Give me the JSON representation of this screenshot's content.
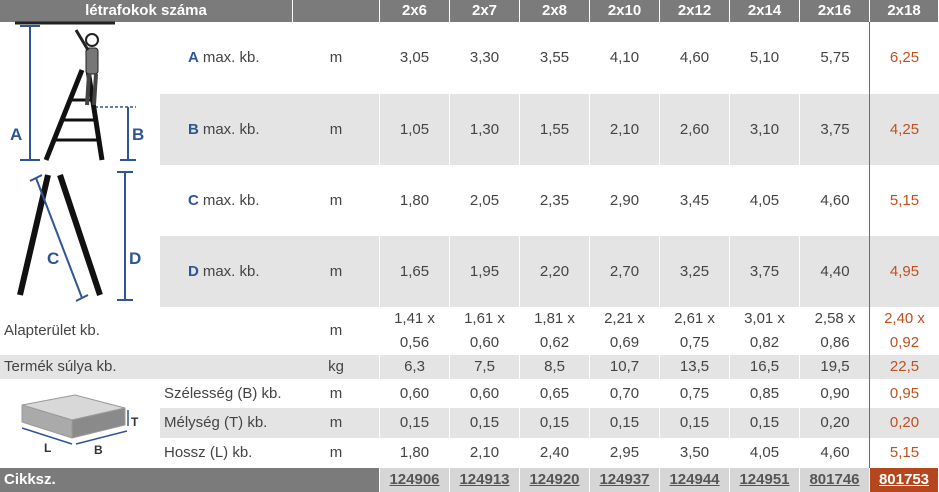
{
  "header": {
    "title": "létrafokok száma",
    "columns": [
      "2x6",
      "2x7",
      "2x8",
      "2x10",
      "2x12",
      "2x14",
      "2x16",
      "2x18"
    ]
  },
  "ladder_labels": {
    "a": "A",
    "b": "B",
    "c": "C",
    "d": "D"
  },
  "box_labels": {
    "t": "T",
    "l": "L",
    "b": "B"
  },
  "rows": [
    {
      "letter": "A",
      "label": "max. kb.",
      "unit": "m",
      "values": [
        "3,05",
        "3,30",
        "3,55",
        "4,10",
        "4,60",
        "5,10",
        "5,75",
        "6,25"
      ]
    },
    {
      "letter": "B",
      "label": "max. kb.",
      "unit": "m",
      "values": [
        "1,05",
        "1,30",
        "1,55",
        "2,10",
        "2,60",
        "3,10",
        "3,75",
        "4,25"
      ]
    },
    {
      "letter": "C",
      "label": "max. kb.",
      "unit": "m",
      "values": [
        "1,80",
        "2,05",
        "2,35",
        "2,90",
        "3,45",
        "4,05",
        "4,60",
        "5,15"
      ]
    },
    {
      "letter": "D",
      "label": "max. kb.",
      "unit": "m",
      "values": [
        "1,65",
        "1,95",
        "2,20",
        "2,70",
        "3,25",
        "3,75",
        "4,40",
        "4,95"
      ]
    },
    {
      "label": "Alapterület kb.",
      "unit": "m",
      "values": [
        [
          "1,41 x",
          "0,56"
        ],
        [
          "1,61 x",
          "0,60"
        ],
        [
          "1,81 x",
          "0,62"
        ],
        [
          "2,21 x",
          "0,69"
        ],
        [
          "2,61 x",
          "0,75"
        ],
        [
          "3,01 x",
          "0,82"
        ],
        [
          "2,58 x",
          "0,86"
        ],
        [
          "2,40 x",
          "0,92"
        ]
      ]
    },
    {
      "label": "Termék súlya kb.",
      "unit": "kg",
      "values": [
        "6,3",
        "7,5",
        "8,5",
        "10,7",
        "13,5",
        "16,5",
        "19,5",
        "22,5"
      ]
    },
    {
      "label": "Szélesség (B) kb.",
      "unit": "m",
      "values": [
        "0,60",
        "0,60",
        "0,65",
        "0,70",
        "0,75",
        "0,85",
        "0,90",
        "0,95"
      ]
    },
    {
      "label": "Mélység (T) kb.",
      "unit": "m",
      "values": [
        "0,15",
        "0,15",
        "0,15",
        "0,15",
        "0,15",
        "0,15",
        "0,20",
        "0,20"
      ]
    },
    {
      "label": "Hossz (L) kb.",
      "unit": "m",
      "values": [
        "1,80",
        "2,10",
        "2,40",
        "2,95",
        "3,50",
        "4,05",
        "4,60",
        "5,15"
      ]
    }
  ],
  "footer": {
    "label": "Cikksz.",
    "values": [
      "124906",
      "124913",
      "124920",
      "124937",
      "124944",
      "124951",
      "801746",
      "801753"
    ]
  }
}
